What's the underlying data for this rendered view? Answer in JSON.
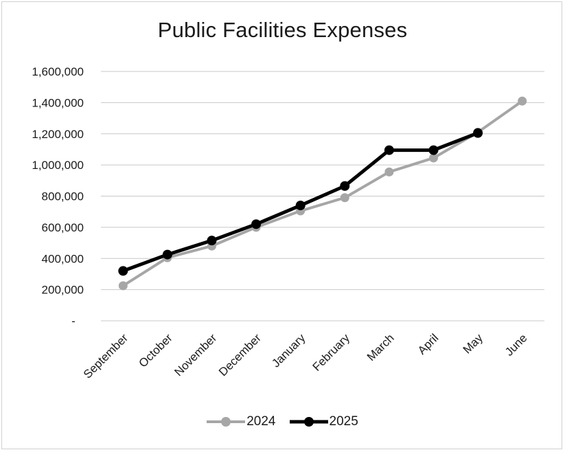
{
  "chart_data": {
    "type": "line",
    "title": "Public Facilities Expenses",
    "categories": [
      "September",
      "October",
      "November",
      "December",
      "January",
      "February",
      "March",
      "April",
      "May",
      "June"
    ],
    "series": [
      {
        "name": "2024",
        "color": "#a6a6a6",
        "values": [
          225000,
          405000,
          480000,
          600000,
          705000,
          790000,
          955000,
          1045000,
          1210000,
          1410000
        ]
      },
      {
        "name": "2025",
        "color": "#000000",
        "values": [
          320000,
          425000,
          515000,
          620000,
          740000,
          865000,
          1095000,
          1095000,
          1205000,
          null
        ]
      }
    ],
    "ylim": [
      0,
      1600000
    ],
    "yticks": [
      {
        "value": 0,
        "label": "-"
      },
      {
        "value": 200000,
        "label": "200,000"
      },
      {
        "value": 400000,
        "label": "400,000"
      },
      {
        "value": 600000,
        "label": "600,000"
      },
      {
        "value": 800000,
        "label": "800,000"
      },
      {
        "value": 1000000,
        "label": "1,000,000"
      },
      {
        "value": 1200000,
        "label": "1,200,000"
      },
      {
        "value": 1400000,
        "label": "1,400,000"
      },
      {
        "value": 1600000,
        "label": "1,600,000"
      }
    ],
    "xlabel": "",
    "ylabel": "",
    "grid": true,
    "legend_position": "bottom"
  }
}
